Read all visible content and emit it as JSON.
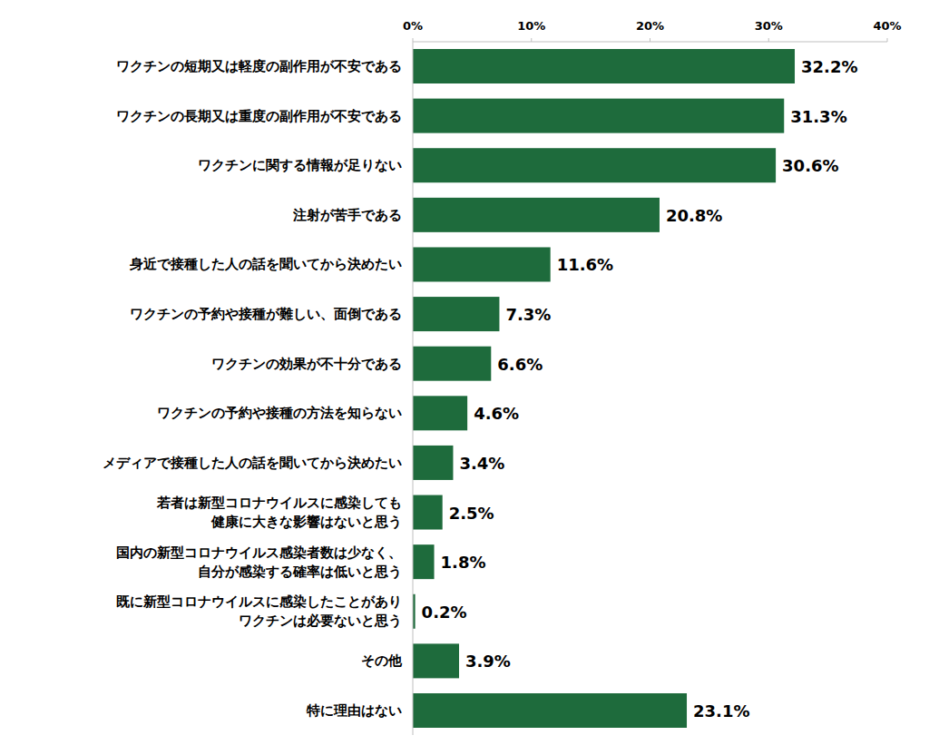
{
  "chart_data": {
    "type": "bar",
    "orientation": "horizontal",
    "categories": [
      "ワクチンの短期又は軽度の副作用が不安である",
      "ワクチンの長期又は重度の副作用が不安である",
      "ワクチンに関する情報が足りない",
      "注射が苦手である",
      "身近で接種した人の話を聞いてから決めたい",
      "ワクチンの予約や接種が難しい、面倒である",
      "ワクチンの効果が不十分である",
      "ワクチンの予約や接種の方法を知らない",
      "メディアで接種した人の話を聞いてから決めたい",
      "若者は新型コロナウイルスに感染しても\n健康に大きな影響はないと思う",
      "国内の新型コロナウイルス感染者数は少なく、\n自分が感染する確率は低いと思う",
      "既に新型コロナウイルスに感染したことがあり\nワクチンは必要ないと思う",
      "その他",
      "特に理由はない"
    ],
    "values": [
      32.2,
      31.3,
      30.6,
      20.8,
      11.6,
      7.3,
      6.6,
      4.6,
      3.4,
      2.5,
      1.8,
      0.2,
      3.9,
      23.1
    ],
    "value_labels": [
      "32.2%",
      "31.3%",
      "30.6%",
      "20.8%",
      "11.6%",
      "7.3%",
      "6.6%",
      "4.6%",
      "3.4%",
      "2.5%",
      "1.8%",
      "0.2%",
      "3.9%",
      "23.1%"
    ],
    "color": "#1e6b3c",
    "xlim": [
      0,
      40
    ],
    "xticks": [
      {
        "value": 0,
        "label": "0%"
      },
      {
        "value": 10,
        "label": "10%"
      },
      {
        "value": 20,
        "label": "20%"
      },
      {
        "value": 30,
        "label": "30%"
      },
      {
        "value": 40,
        "label": "40%"
      }
    ],
    "grid": false,
    "data_labels": true
  }
}
